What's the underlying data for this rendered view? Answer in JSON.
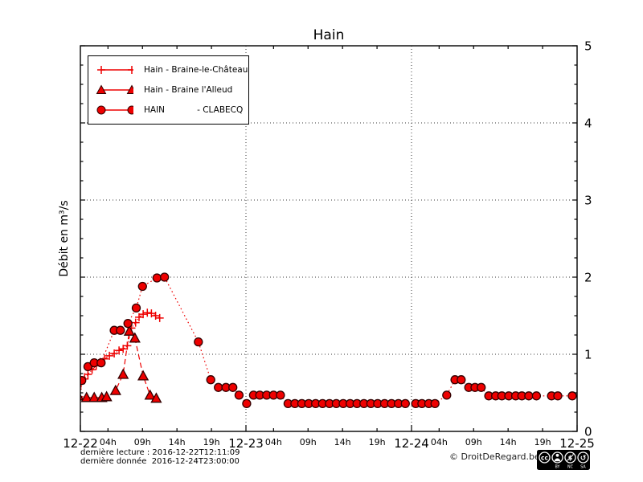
{
  "title": "Hain",
  "footer": {
    "last_reading": "dernière lecture : 2016-12-22T12:11:09",
    "last_data": "dernière donnée  2016-12-24T23:00:00",
    "copyright": "© DroitDeRegard.be",
    "license_badge": "CC BY-NC-SA",
    "cc_symbol": "cc",
    "license_labels": [
      "BY",
      "NC",
      "SA"
    ]
  },
  "chart_data": {
    "type": "line",
    "title": "Hain",
    "xlabel": "",
    "ylabel": "Débit en m³/s",
    "ylim": [
      0,
      5
    ],
    "x_unit": "hours from 12-22 00:00",
    "xlim": [
      0,
      72
    ],
    "grid_on": true,
    "grid": {
      "y_values": [
        1,
        2,
        3,
        4
      ],
      "x_values": [
        24,
        48
      ]
    },
    "yticks": [
      {
        "v": 0,
        "label": "0"
      },
      {
        "v": 1,
        "label": "1"
      },
      {
        "v": 2,
        "label": "2"
      },
      {
        "v": 3,
        "label": "3"
      },
      {
        "v": 4,
        "label": "4"
      },
      {
        "v": 5,
        "label": "5"
      }
    ],
    "y_minor_step": 0.25,
    "x_major_ticks": [
      {
        "t": 0,
        "label": "12-22"
      },
      {
        "t": 24,
        "label": "12-23"
      },
      {
        "t": 48,
        "label": "12-24"
      },
      {
        "t": 72,
        "label": "12-25"
      }
    ],
    "x_minor_ticks": [
      {
        "t": 4,
        "label": "04h"
      },
      {
        "t": 9,
        "label": "09h"
      },
      {
        "t": 14,
        "label": "14h"
      },
      {
        "t": 19,
        "label": "19h"
      },
      {
        "t": 28,
        "label": "04h"
      },
      {
        "t": 33,
        "label": "09h"
      },
      {
        "t": 38,
        "label": "14h"
      },
      {
        "t": 43,
        "label": "19h"
      },
      {
        "t": 52,
        "label": "04h"
      },
      {
        "t": 57,
        "label": "09h"
      },
      {
        "t": 62,
        "label": "14h"
      },
      {
        "t": 67,
        "label": "19h"
      }
    ],
    "legend_position": "upper left",
    "marker_edge": "#330000",
    "series": [
      {
        "name": "Hain - Braine-le-Château",
        "marker": "plus",
        "line": "dashdot",
        "color": "#ee0000",
        "points": [
          [
            -0.4,
            0.55
          ],
          [
            0.1,
            0.62
          ],
          [
            0.6,
            0.68
          ],
          [
            1.1,
            0.74
          ],
          [
            1.7,
            0.8
          ],
          [
            2.3,
            0.85
          ],
          [
            2.9,
            0.9
          ],
          [
            3.5,
            0.94
          ],
          [
            4.2,
            0.98
          ],
          [
            4.9,
            1.01
          ],
          [
            5.6,
            1.05
          ],
          [
            6.2,
            1.07
          ],
          [
            6.8,
            1.11
          ],
          [
            7.4,
            1.34
          ],
          [
            8.0,
            1.41
          ],
          [
            8.5,
            1.48
          ],
          [
            9.1,
            1.52
          ],
          [
            9.7,
            1.54
          ],
          [
            10.3,
            1.53
          ],
          [
            10.9,
            1.5
          ],
          [
            11.5,
            1.47
          ]
        ]
      },
      {
        "name": "Hain - Braine l'Alleud",
        "marker": "triangle",
        "line": "dashed",
        "color": "#ee0000",
        "points": [
          [
            -0.3,
            0.46
          ],
          [
            0.9,
            0.44
          ],
          [
            2.0,
            0.44
          ],
          [
            3.1,
            0.44
          ],
          [
            3.8,
            0.45
          ],
          [
            5.1,
            0.53
          ],
          [
            6.2,
            0.74
          ],
          [
            7.1,
            1.3
          ],
          [
            7.9,
            1.21
          ],
          [
            9.1,
            0.72
          ],
          [
            10.1,
            0.47
          ],
          [
            11.0,
            0.43
          ]
        ]
      },
      {
        "name": "HAIN            - CLABECQ",
        "marker": "circle",
        "line": "dotted",
        "color": "#ee0000",
        "points": [
          [
            -0.6,
            0.46
          ],
          [
            0.2,
            0.66
          ],
          [
            1.1,
            0.84
          ],
          [
            2.0,
            0.89
          ],
          [
            3.0,
            0.89
          ],
          [
            4.9,
            1.31
          ],
          [
            5.8,
            1.31
          ],
          [
            6.9,
            1.4
          ],
          [
            8.1,
            1.6
          ],
          [
            9.0,
            1.88
          ],
          [
            11.1,
            1.99
          ],
          [
            12.2,
            2.0
          ],
          [
            17.1,
            1.16
          ],
          [
            18.9,
            0.67
          ],
          [
            20.0,
            0.57
          ],
          [
            21.1,
            0.57
          ],
          [
            22.1,
            0.57
          ],
          [
            23.0,
            0.47
          ],
          [
            24.1,
            0.36
          ],
          [
            25.1,
            0.47
          ],
          [
            26.0,
            0.47
          ],
          [
            27.0,
            0.47
          ],
          [
            28.0,
            0.47
          ],
          [
            29.0,
            0.47
          ],
          [
            30.1,
            0.36
          ],
          [
            31.1,
            0.36
          ],
          [
            32.1,
            0.36
          ],
          [
            33.1,
            0.36
          ],
          [
            34.1,
            0.36
          ],
          [
            35.1,
            0.36
          ],
          [
            36.1,
            0.36
          ],
          [
            37.1,
            0.36
          ],
          [
            38.1,
            0.36
          ],
          [
            39.1,
            0.36
          ],
          [
            40.1,
            0.36
          ],
          [
            41.1,
            0.36
          ],
          [
            42.1,
            0.36
          ],
          [
            43.1,
            0.36
          ],
          [
            44.1,
            0.36
          ],
          [
            45.1,
            0.36
          ],
          [
            46.1,
            0.36
          ],
          [
            47.1,
            0.36
          ],
          [
            48.6,
            0.36
          ],
          [
            49.5,
            0.36
          ],
          [
            50.5,
            0.36
          ],
          [
            51.4,
            0.36
          ],
          [
            53.1,
            0.47
          ],
          [
            54.3,
            0.67
          ],
          [
            55.2,
            0.67
          ],
          [
            56.3,
            0.57
          ],
          [
            57.2,
            0.57
          ],
          [
            58.1,
            0.57
          ],
          [
            59.2,
            0.46
          ],
          [
            60.2,
            0.46
          ],
          [
            61.1,
            0.46
          ],
          [
            62.1,
            0.46
          ],
          [
            63.1,
            0.46
          ],
          [
            64.0,
            0.46
          ],
          [
            65.0,
            0.46
          ],
          [
            66.1,
            0.46
          ],
          [
            68.3,
            0.46
          ],
          [
            69.2,
            0.46
          ],
          [
            71.3,
            0.46
          ]
        ]
      }
    ]
  }
}
